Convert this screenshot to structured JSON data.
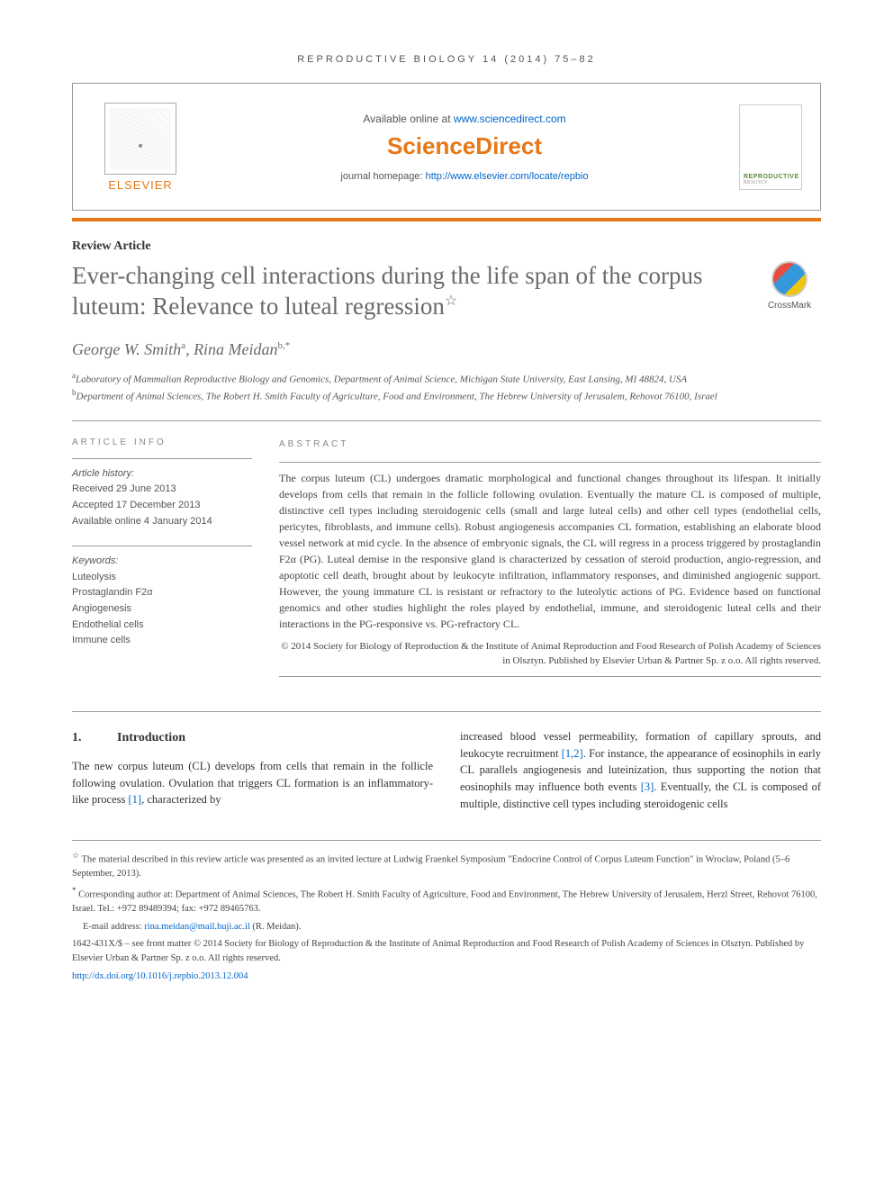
{
  "journal_header": "REPRODUCTIVE BIOLOGY 14 (2014) 75–82",
  "top_box": {
    "elsevier": "ELSEVIER",
    "available_prefix": "Available online at ",
    "available_link": "www.sciencedirect.com",
    "sciencedirect": "ScienceDirect",
    "homepage_prefix": "journal homepage: ",
    "homepage_link": "http://www.elsevier.com/locate/repbio",
    "cover_title": "REPRODUCTIVE",
    "cover_sub": "BIOLOGY"
  },
  "article_type": "Review Article",
  "title": "Ever-changing cell interactions during the life span of the corpus luteum: Relevance to luteal regression",
  "title_star": "☆",
  "crossmark": "CrossMark",
  "authors": {
    "a1_name": "George W. Smith",
    "a1_sup": "a",
    "a2_name": "Rina Meidan",
    "a2_sup": "b,",
    "a2_corr": "*"
  },
  "affiliations": {
    "a_sup": "a",
    "a_text": "Laboratory of Mammalian Reproductive Biology and Genomics, Department of Animal Science, Michigan State University, East Lansing, MI 48824, USA",
    "b_sup": "b",
    "b_text": "Department of Animal Sciences, The Robert H. Smith Faculty of Agriculture, Food and Environment, The Hebrew University of Jerusalem, Rehovot 76100, Israel"
  },
  "info": {
    "heading": "ARTICLE INFO",
    "history_label": "Article history:",
    "received": "Received 29 June 2013",
    "accepted": "Accepted 17 December 2013",
    "online": "Available online 4 January 2014",
    "keywords_label": "Keywords:",
    "kw1": "Luteolysis",
    "kw2": "Prostaglandin F2α",
    "kw3": "Angiogenesis",
    "kw4": "Endothelial cells",
    "kw5": "Immune cells"
  },
  "abstract": {
    "heading": "ABSTRACT",
    "body": "The corpus luteum (CL) undergoes dramatic morphological and functional changes throughout its lifespan. It initially develops from cells that remain in the follicle following ovulation. Eventually the mature CL is composed of multiple, distinctive cell types including steroidogenic cells (small and large luteal cells) and other cell types (endothelial cells, pericytes, fibroblasts, and immune cells). Robust angiogenesis accompanies CL formation, establishing an elaborate blood vessel network at mid cycle. In the absence of embryonic signals, the CL will regress in a process triggered by prostaglandin F2α (PG). Luteal demise in the responsive gland is characterized by cessation of steroid production, angio-regression, and apoptotic cell death, brought about by leukocyte infiltration, inflammatory responses, and diminished angiogenic support. However, the young immature CL is resistant or refractory to the luteolytic actions of PG. Evidence based on functional genomics and other studies highlight the roles played by endothelial, immune, and steroidogenic luteal cells and their interactions in the PG-responsive vs. PG-refractory CL.",
    "copyright": "© 2014 Society for Biology of Reproduction & the Institute of Animal Reproduction and Food Research of Polish Academy of Sciences in Olsztyn. Published by Elsevier Urban & Partner Sp. z o.o. All rights reserved."
  },
  "section1": {
    "num": "1.",
    "title": "Introduction",
    "col1_text": "The new corpus luteum (CL) develops from cells that remain in the follicle following ovulation. Ovulation that triggers CL formation is an inflammatory-like process ",
    "col1_ref": "[1]",
    "col1_after": ", characterized by",
    "col2_text1": "increased blood vessel permeability, formation of capillary sprouts, and leukocyte recruitment ",
    "col2_ref1": "[1,2]",
    "col2_text2": ". For instance, the appearance of eosinophils in early CL parallels angiogenesis and luteinization, thus supporting the notion that eosinophils may influence both events ",
    "col2_ref2": "[3]",
    "col2_text3": ". Eventually, the CL is composed of multiple, distinctive cell types including steroidogenic cells"
  },
  "footnotes": {
    "star": "☆",
    "star_text": " The material described in this review article was presented as an invited lecture at Ludwig Fraenkel Symposium \"Endocrine Control of Corpus Luteum Function\" in Wrocław, Poland (5–6 September, 2013).",
    "corr": "*",
    "corr_text": " Corresponding author at: Department of Animal Sciences, The Robert H. Smith Faculty of Agriculture, Food and Environment, The Hebrew University of Jerusalem, Herzl Street, Rehovot 76100, Israel. Tel.: +972 89489394; fax: +972 89465763.",
    "email_label": "E-mail address: ",
    "email": "rina.meidan@mail.huji.ac.il",
    "email_suffix": " (R. Meidan).",
    "issn": "1642-431X/$ – see front matter © 2014 Society for Biology of Reproduction & the Institute of Animal Reproduction and Food Research of Polish Academy of Sciences in Olsztyn. Published by Elsevier Urban & Partner Sp. z o.o. All rights reserved.",
    "doi": "http://dx.doi.org/10.1016/j.repbio.2013.12.004"
  }
}
